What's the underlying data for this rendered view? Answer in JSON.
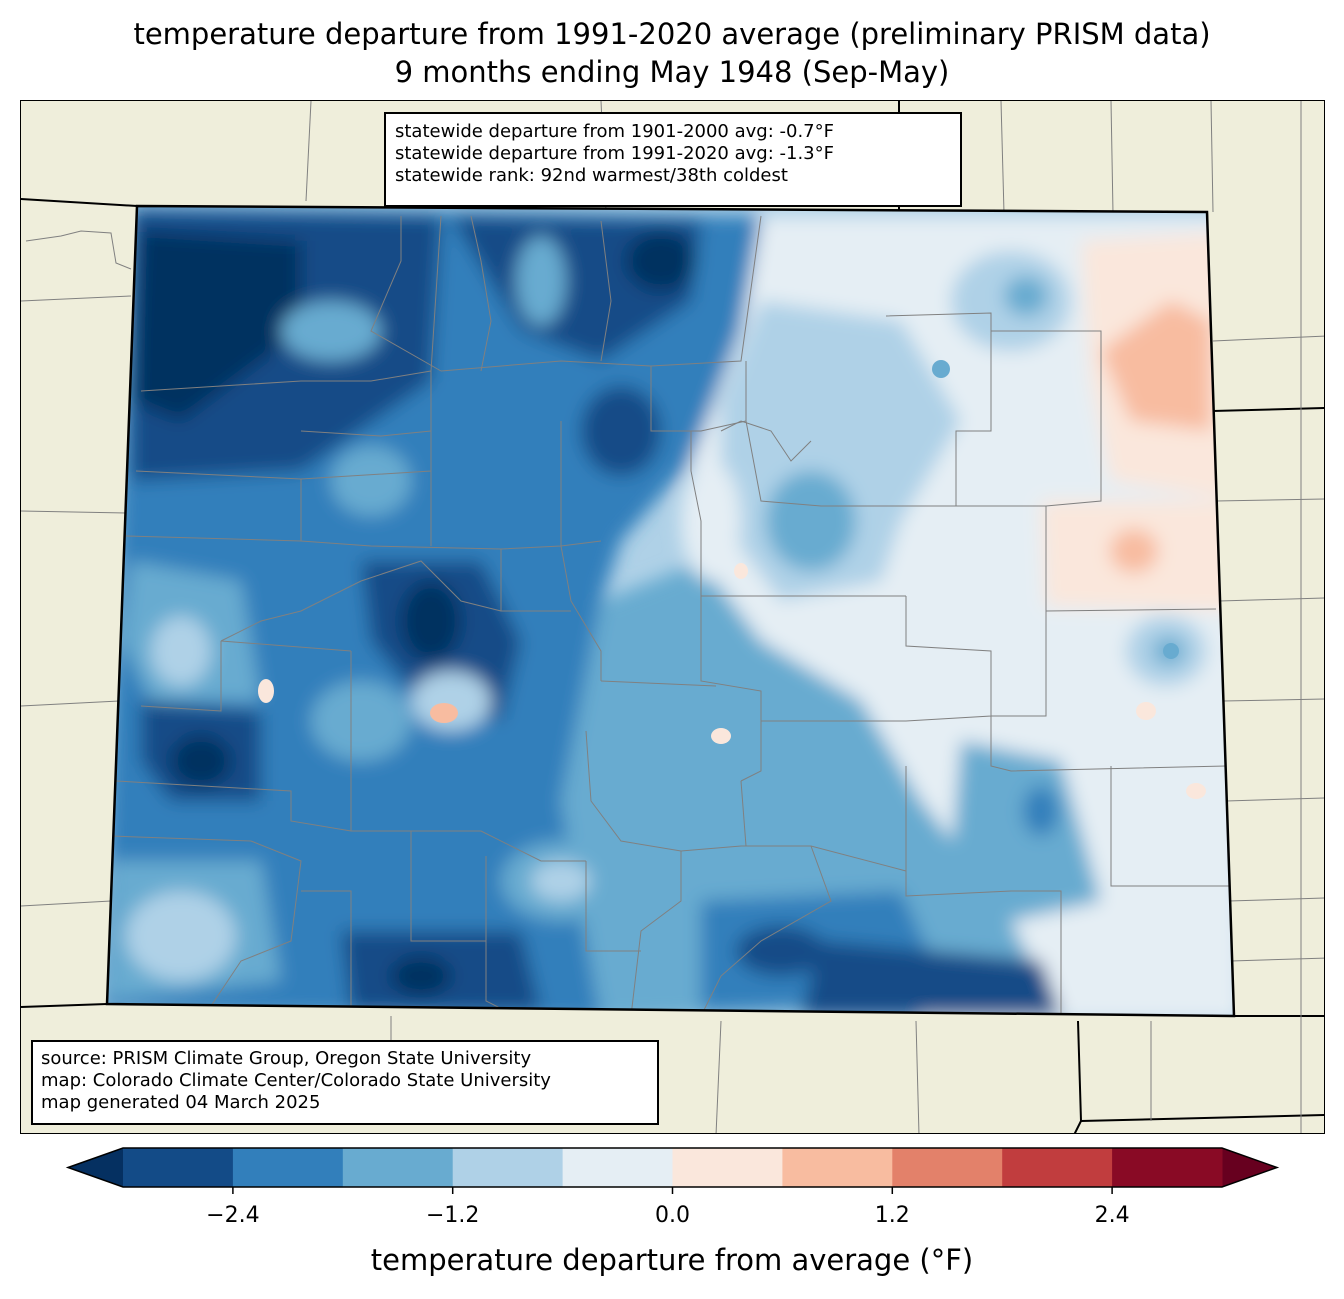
{
  "title": {
    "line1": "temperature departure from 1991-2020 average (preliminary PRISM data)",
    "line2": "9 months ending May 1948 (Sep-May)"
  },
  "stats": {
    "line1": "statewide departure from 1901-2000 avg: -0.7°F",
    "line2": "statewide departure from 1991-2020 avg: -1.3°F",
    "line3": "statewide rank: 92nd warmest/38th coldest"
  },
  "source": {
    "line1": "source: PRISM Climate Group, Oregon State University",
    "line2": "map: Colorado Climate Center/Colorado State University",
    "line3": "map generated 04 March 2025"
  },
  "colorbar": {
    "label": "temperature departure from average (°F)",
    "ticks": [
      "−2.4",
      "−1.2",
      "0.0",
      "1.2",
      "2.4"
    ],
    "tick_values": [
      -2.4,
      -1.2,
      0.0,
      1.2,
      2.4
    ],
    "min": -3.0,
    "max": 3.0,
    "step": 0.6,
    "colors": [
      "#053061",
      "#134b87",
      "#327fbb",
      "#68abd0",
      "#afd1e7",
      "#e5eef4",
      "#fae7dc",
      "#f8bca0",
      "#e3816a",
      "#c13d3e",
      "#890a25",
      "#67001f"
    ]
  },
  "map_colors": {
    "land": "#efeedb",
    "state_border": "#000000",
    "county_border": "#808080"
  }
}
